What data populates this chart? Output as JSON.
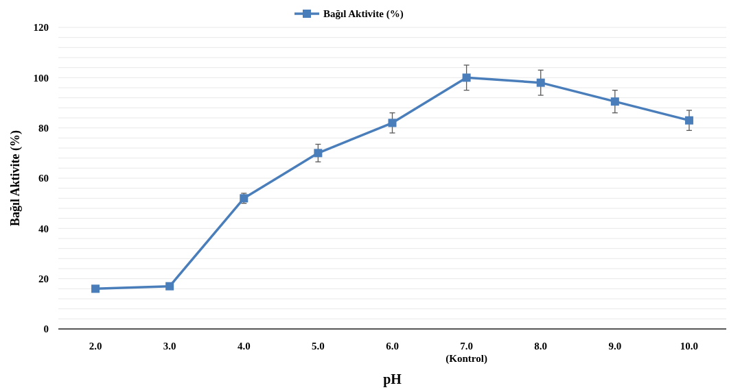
{
  "chart_data": {
    "type": "line",
    "xlabel": "pH",
    "ylabel": "Bağıl Aktivite (%)",
    "categories": [
      "2.0",
      "3.0",
      "4.0",
      "5.0",
      "6.0",
      "7.0\n(Kontrol)",
      "8.0",
      "9.0",
      "10.0"
    ],
    "series": [
      {
        "name": "Bağıl Aktivite (%)",
        "color": "#4a7ebb",
        "values": [
          16,
          17,
          52,
          70,
          82,
          100,
          98,
          90.5,
          83
        ],
        "errors": [
          null,
          null,
          2,
          3.5,
          4,
          5,
          5,
          4.5,
          4
        ]
      }
    ],
    "ylim": [
      0,
      120
    ],
    "yticks": [
      0,
      {
        "value": 4,
        "label": null
      },
      {
        "value": 8,
        "label": null
      },
      {
        "value": 12,
        "label": null
      },
      {
        "value": 16,
        "label": null
      },
      20,
      {
        "value": 24,
        "label": null
      },
      {
        "value": 28,
        "label": null
      },
      {
        "value": 32,
        "label": null
      },
      {
        "value": 36,
        "label": null
      },
      40,
      {
        "value": 44,
        "label": null
      },
      {
        "value": 48,
        "label": null
      },
      {
        "value": 52,
        "label": null
      },
      {
        "value": 56,
        "label": null
      },
      60,
      {
        "value": 64,
        "label": null
      },
      {
        "value": 68,
        "label": null
      },
      {
        "value": 72,
        "label": null
      },
      {
        "value": 76,
        "label": null
      },
      80,
      {
        "value": 84,
        "label": null
      },
      {
        "value": 88,
        "label": null
      },
      {
        "value": 92,
        "label": null
      },
      {
        "value": 96,
        "label": null
      },
      100,
      {
        "value": 104,
        "label": null
      },
      {
        "value": 108,
        "label": null
      },
      {
        "value": 112,
        "label": null
      },
      {
        "value": 116,
        "label": null
      },
      120
    ],
    "grid": "y",
    "legend": "top",
    "marker": "square",
    "line_style": "solid"
  }
}
